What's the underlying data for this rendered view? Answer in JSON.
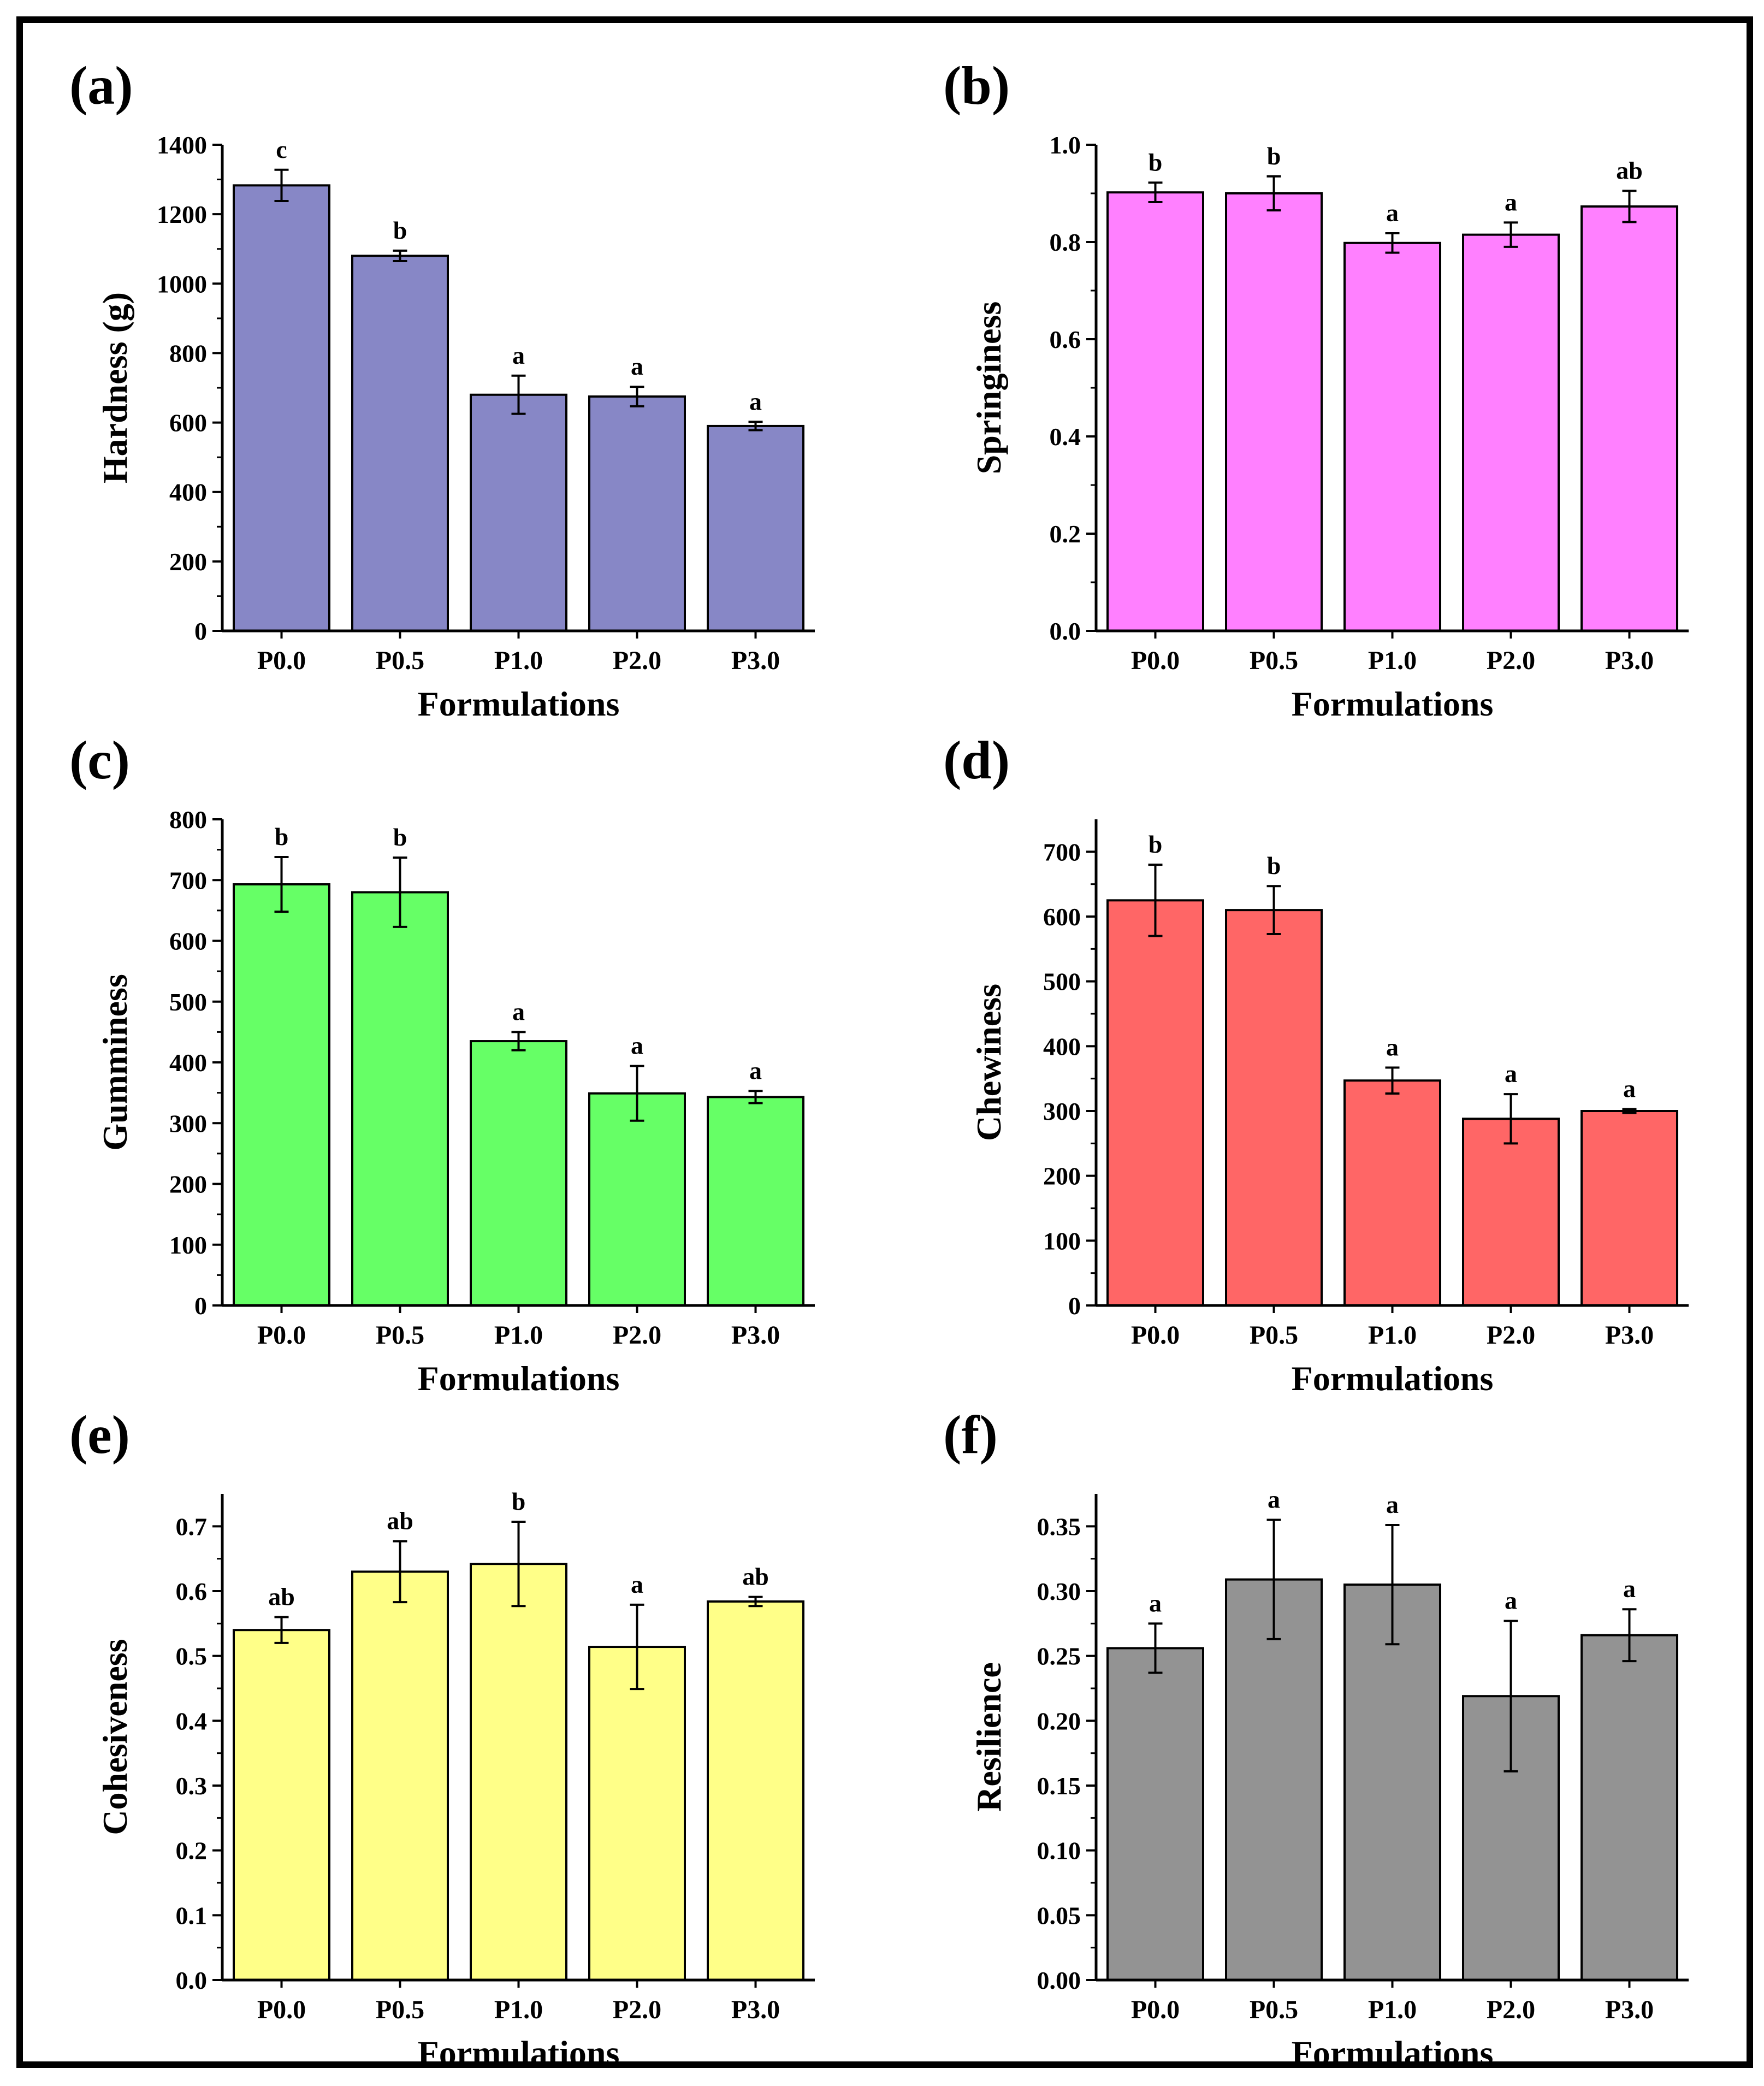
{
  "chart_data": [
    {
      "panel": "(a)",
      "type": "bar",
      "categories": [
        "P0.0",
        "P0.5",
        "P1.0",
        "P2.0",
        "P3.0"
      ],
      "values": [
        1283,
        1080,
        680,
        675,
        590
      ],
      "errors": [
        45,
        15,
        55,
        28,
        12
      ],
      "significance": [
        "c",
        "b",
        "a",
        "a",
        "a"
      ],
      "xlabel": "Formulations",
      "ylabel": "Hardness (g)",
      "ylim": [
        0,
        1400
      ],
      "yticks": [
        0,
        200,
        400,
        600,
        800,
        1000,
        1200,
        1400
      ],
      "ytick_labels": [
        "0",
        "200",
        "400",
        "600",
        "800",
        "1000",
        "1200",
        "1400"
      ],
      "color": "#8787C6"
    },
    {
      "panel": "(b)",
      "type": "bar",
      "categories": [
        "P0.0",
        "P0.5",
        "P1.0",
        "P2.0",
        "P3.0"
      ],
      "values": [
        0.902,
        0.9,
        0.798,
        0.815,
        0.873
      ],
      "errors": [
        0.02,
        0.035,
        0.02,
        0.025,
        0.032
      ],
      "significance": [
        "b",
        "b",
        "a",
        "a",
        "ab"
      ],
      "xlabel": "Formulations",
      "ylabel": "Springiness",
      "ylim": [
        0,
        1.0
      ],
      "yticks": [
        0,
        0.2,
        0.4,
        0.6,
        0.8,
        1.0
      ],
      "ytick_labels": [
        "0.0",
        "0.2",
        "0.4",
        "0.6",
        "0.8",
        "1.0"
      ],
      "color": "#FF80FF"
    },
    {
      "panel": "(c)",
      "type": "bar",
      "categories": [
        "P0.0",
        "P0.5",
        "P1.0",
        "P2.0",
        "P3.0"
      ],
      "values": [
        693,
        680,
        435,
        349,
        343
      ],
      "errors": [
        45,
        57,
        15,
        45,
        10
      ],
      "significance": [
        "b",
        "b",
        "a",
        "a",
        "a"
      ],
      "xlabel": "Formulations",
      "ylabel": "Gumminess",
      "ylim": [
        0,
        800
      ],
      "yticks": [
        0,
        100,
        200,
        300,
        400,
        500,
        600,
        700,
        800
      ],
      "ytick_labels": [
        "0",
        "100",
        "200",
        "300",
        "400",
        "500",
        "600",
        "700",
        "800"
      ],
      "color": "#66FF66"
    },
    {
      "panel": "(d)",
      "type": "bar",
      "categories": [
        "P0.0",
        "P0.5",
        "P1.0",
        "P2.0",
        "P3.0"
      ],
      "values": [
        625,
        610,
        347,
        288,
        300
      ],
      "errors": [
        55,
        37,
        20,
        38,
        3
      ],
      "significance": [
        "b",
        "b",
        "a",
        "a",
        "a"
      ],
      "xlabel": "Formulations",
      "ylabel": "Chewiness",
      "ylim": [
        0,
        750
      ],
      "yticks": [
        0,
        100,
        200,
        300,
        400,
        500,
        600,
        700
      ],
      "ytick_labels": [
        "0",
        "100",
        "200",
        "300",
        "400",
        "500",
        "600",
        "700"
      ],
      "color": "#FF6666"
    },
    {
      "panel": "(e)",
      "type": "bar",
      "categories": [
        "P0.0",
        "P0.5",
        "P1.0",
        "P2.0",
        "P3.0"
      ],
      "values": [
        0.54,
        0.63,
        0.642,
        0.514,
        0.584
      ],
      "errors": [
        0.02,
        0.047,
        0.065,
        0.065,
        0.007
      ],
      "significance": [
        "ab",
        "ab",
        "b",
        "a",
        "ab"
      ],
      "xlabel": "Formulations",
      "ylabel": "Cohesiveness",
      "ylim": [
        0,
        0.75
      ],
      "yticks": [
        0,
        0.1,
        0.2,
        0.3,
        0.4,
        0.5,
        0.6,
        0.7
      ],
      "ytick_labels": [
        "0.0",
        "0.1",
        "0.2",
        "0.3",
        "0.4",
        "0.5",
        "0.6",
        "0.7"
      ],
      "color": "#FFFF88"
    },
    {
      "panel": "(f)",
      "type": "bar",
      "categories": [
        "P0.0",
        "P0.5",
        "P1.0",
        "P2.0",
        "P3.0"
      ],
      "values": [
        0.256,
        0.309,
        0.305,
        0.219,
        0.266
      ],
      "errors": [
        0.019,
        0.046,
        0.046,
        0.058,
        0.02
      ],
      "significance": [
        "a",
        "a",
        "a",
        "a",
        "a"
      ],
      "xlabel": "Formulations",
      "ylabel": "Resilience",
      "ylim": [
        0,
        0.375
      ],
      "yticks": [
        0,
        0.05,
        0.1,
        0.15,
        0.2,
        0.25,
        0.3,
        0.35
      ],
      "ytick_labels": [
        "0.00",
        "0.05",
        "0.10",
        "0.15",
        "0.20",
        "0.25",
        "0.30",
        "0.35"
      ],
      "color": "#939393"
    }
  ]
}
